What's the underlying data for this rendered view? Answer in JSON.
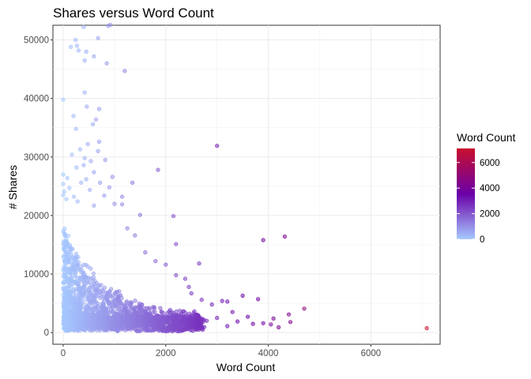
{
  "chart_data": {
    "type": "scatter",
    "title": "Shares versus Word Count",
    "xlabel": "Word Count",
    "ylabel": "# Shares",
    "xlim": [
      -200,
      7350
    ],
    "ylim": [
      -2000,
      52500
    ],
    "x_ticks": [
      0,
      2000,
      4000,
      6000
    ],
    "y_ticks": [
      0,
      10000,
      20000,
      30000,
      40000,
      50000
    ],
    "grid": true,
    "legend": {
      "title": "Word Count",
      "placement": "right",
      "breaks": [
        0,
        2000,
        4000,
        6000
      ],
      "range": [
        0,
        7100
      ],
      "colors": [
        "#a6c8ff",
        "#6a00a8",
        "#c8102e"
      ]
    },
    "points": [
      [
        0,
        39800
      ],
      [
        150,
        48800
      ],
      [
        240,
        50000
      ],
      [
        270,
        49000
      ],
      [
        300,
        48200
      ],
      [
        400,
        52200
      ],
      [
        450,
        48000
      ],
      [
        680,
        50300
      ],
      [
        880,
        52400
      ],
      [
        920,
        52600
      ],
      [
        850,
        46000
      ],
      [
        1200,
        44700
      ],
      [
        600,
        47200
      ],
      [
        420,
        46500
      ],
      [
        200,
        37000
      ],
      [
        420,
        41000
      ],
      [
        460,
        38600
      ],
      [
        580,
        35600
      ],
      [
        700,
        38200
      ],
      [
        640,
        36400
      ],
      [
        250,
        34800
      ],
      [
        330,
        31300
      ],
      [
        480,
        32200
      ],
      [
        700,
        32600
      ],
      [
        420,
        29800
      ],
      [
        540,
        29300
      ],
      [
        400,
        28600
      ],
      [
        600,
        27400
      ],
      [
        820,
        29500
      ],
      [
        680,
        31000
      ],
      [
        260,
        28200
      ],
      [
        170,
        30400
      ],
      [
        960,
        26600
      ],
      [
        0,
        27000
      ],
      [
        80,
        26400
      ],
      [
        0,
        25400
      ],
      [
        20,
        24100
      ],
      [
        60,
        22800
      ],
      [
        0,
        23500
      ],
      [
        120,
        24700
      ],
      [
        210,
        23200
      ],
      [
        280,
        22400
      ],
      [
        350,
        25600
      ],
      [
        450,
        26200
      ],
      [
        520,
        24400
      ],
      [
        600,
        21700
      ],
      [
        720,
        25600
      ],
      [
        800,
        23400
      ],
      [
        900,
        24800
      ],
      [
        1000,
        22000
      ],
      [
        1150,
        23200
      ],
      [
        1350,
        25600
      ],
      [
        1500,
        20100
      ],
      [
        1850,
        27800
      ],
      [
        2150,
        19900
      ],
      [
        2200,
        15100
      ],
      [
        3000,
        31900
      ],
      [
        4320,
        16400
      ],
      [
        3900,
        15800
      ],
      [
        1150,
        21900
      ],
      [
        1250,
        17800
      ],
      [
        1400,
        16600
      ],
      [
        1600,
        13700
      ],
      [
        1800,
        12200
      ],
      [
        2000,
        11600
      ],
      [
        2200,
        9800
      ],
      [
        2380,
        9200
      ],
      [
        2650,
        11800
      ],
      [
        2450,
        7800
      ],
      [
        2500,
        6700
      ],
      [
        2700,
        5600
      ],
      [
        2900,
        4800
      ],
      [
        3100,
        5400
      ],
      [
        3200,
        5300
      ],
      [
        3500,
        6300
      ],
      [
        3800,
        5700
      ],
      [
        4700,
        4100
      ],
      [
        4400,
        3100
      ],
      [
        4100,
        2400
      ],
      [
        3300,
        3500
      ],
      [
        3600,
        2700
      ],
      [
        3000,
        2500
      ],
      [
        2800,
        2000
      ],
      [
        3400,
        1900
      ],
      [
        3700,
        1500
      ],
      [
        3900,
        1600
      ],
      [
        4050,
        1400
      ],
      [
        4200,
        900
      ],
      [
        4430,
        1800
      ],
      [
        3200,
        1100
      ],
      [
        2600,
        900
      ],
      [
        7090,
        750
      ],
      [
        0,
        10700
      ],
      [
        0,
        9600
      ],
      [
        0,
        8600
      ],
      [
        0,
        7600
      ],
      [
        0,
        6400
      ],
      [
        0,
        5200
      ],
      [
        30,
        4200
      ],
      [
        60,
        3400
      ],
      [
        40,
        2500
      ],
      [
        80,
        1800
      ],
      [
        110,
        1100
      ],
      [
        150,
        700
      ]
    ]
  }
}
